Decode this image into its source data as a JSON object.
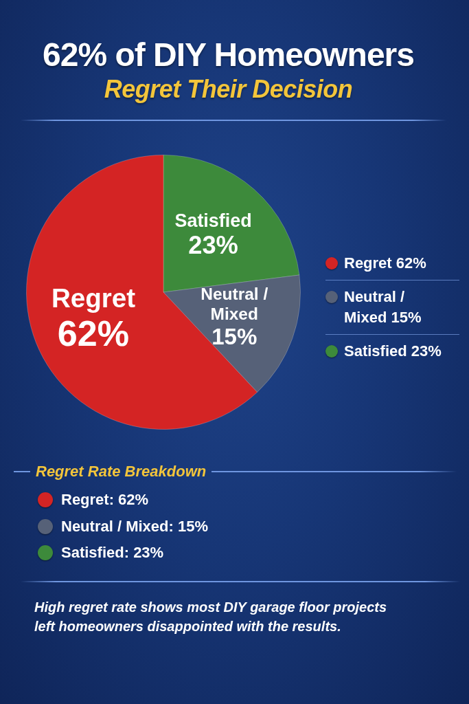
{
  "chart_data": {
    "type": "pie",
    "title": "62% of DIY Homeowners",
    "subtitle": "Regret Their Decision",
    "categories": [
      "Regret",
      "Neutral / Mixed",
      "Satisfied"
    ],
    "values": [
      62,
      15,
      23
    ],
    "colors": [
      "#d42424",
      "#566178",
      "#3d8a3b"
    ],
    "value_labels": [
      "62%",
      "15%",
      "23%"
    ],
    "legend": "right",
    "annotations": [
      "Regret Rate Breakdown",
      "Regret: 62%",
      "Neutral / Mixed: 15%",
      "Satisfied: 23%",
      "High regret rate shows most DIY garage floor projects left homeowners disappointed with the results."
    ]
  }
}
